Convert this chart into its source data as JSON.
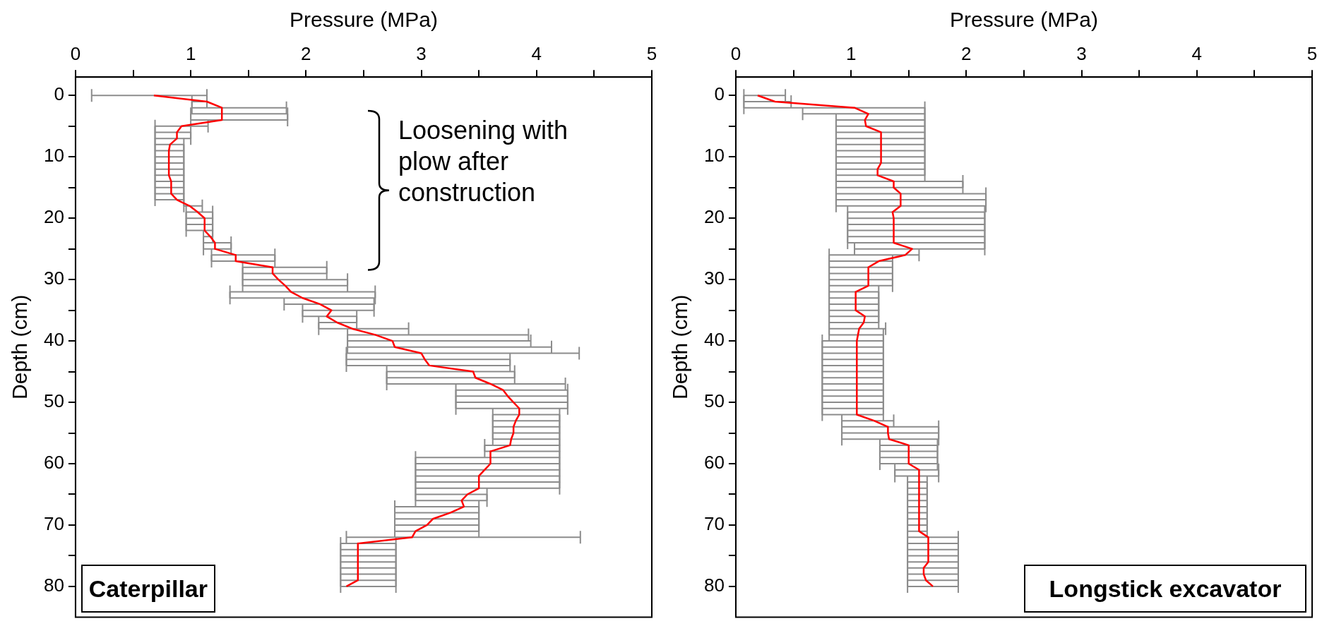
{
  "chart_data": [
    {
      "type": "line",
      "xlabel": "Pressure (MPa)",
      "ylabel": "Depth (cm)",
      "xlim": [
        0,
        5
      ],
      "xticks": [
        0,
        {
          "value": 0.5,
          "label": null
        },
        1,
        {
          "value": 1.5,
          "label": null
        },
        2,
        {
          "value": 2.5,
          "label": null
        },
        3,
        {
          "value": 3.5,
          "label": null
        },
        4,
        {
          "value": 4.5,
          "label": null
        },
        5
      ],
      "ylim": [
        85,
        -3
      ],
      "yticks": [
        0,
        {
          "value": 5,
          "label": null
        },
        10,
        {
          "value": 15,
          "label": null
        },
        20,
        {
          "value": 25,
          "label": null
        },
        30,
        {
          "value": 35,
          "label": null
        },
        40,
        {
          "value": 45,
          "label": null
        },
        50,
        {
          "value": 55,
          "label": null
        },
        60,
        {
          "value": 65,
          "label": null
        },
        70,
        {
          "value": 75,
          "label": null
        },
        80
      ],
      "grid": false,
      "legend": false,
      "marker": "none",
      "annotations": [
        "Loosening with plow after construction",
        "Caterpillar"
      ],
      "series": [
        {
          "color": "#ff0000",
          "x": [
            0.68,
            1.14,
            1.27,
            1.27,
            1.27,
            0.92,
            0.88,
            0.88,
            0.82,
            0.81,
            0.81,
            0.81,
            0.81,
            0.81,
            0.83,
            0.83,
            0.83,
            0.88,
            0.99,
            1.06,
            1.12,
            1.12,
            1.12,
            1.17,
            1.21,
            1.21,
            1.39,
            1.39,
            1.71,
            1.71,
            1.76,
            1.82,
            1.87,
            1.97,
            2.12,
            2.22,
            2.18,
            2.27,
            2.4,
            2.6,
            2.75,
            2.77,
            3.0,
            3.03,
            3.07,
            3.45,
            3.47,
            3.6,
            3.71,
            3.75,
            3.8,
            3.85,
            3.85,
            3.82,
            3.8,
            3.8,
            3.78,
            3.77,
            3.6,
            3.6,
            3.6,
            3.55,
            3.5,
            3.5,
            3.5,
            3.4,
            3.35,
            3.37,
            3.25,
            3.1,
            3.05,
            2.95,
            2.92,
            2.45,
            2.45,
            2.45,
            2.45,
            2.45,
            2.45,
            2.45,
            2.35
          ],
          "values": [
            0,
            1,
            2,
            3,
            4,
            5,
            6,
            7,
            8,
            9,
            10,
            11,
            12,
            13,
            14,
            15,
            16,
            17,
            18,
            19,
            20,
            21,
            22,
            23,
            24,
            25,
            26,
            27,
            28,
            29,
            30,
            31,
            32,
            33,
            34,
            35,
            36,
            37,
            38,
            39,
            40,
            41,
            42,
            43,
            44,
            45,
            46,
            47,
            48,
            49,
            50,
            51,
            52,
            53,
            54,
            55,
            56,
            57,
            58,
            59,
            60,
            61,
            62,
            63,
            64,
            65,
            66,
            67,
            68,
            69,
            70,
            71,
            72,
            73,
            74,
            75,
            76,
            77,
            78,
            79,
            80
          ],
          "xerrors": [
            [
              0.14,
              1.14
            ],
            [
              1.01,
              1.14
            ],
            [
              1.01,
              1.83
            ],
            [
              1.0,
              1.84
            ],
            [
              1.0,
              1.84
            ],
            [
              0.69,
              1.15
            ],
            [
              0.69,
              1.0
            ],
            [
              0.69,
              1.0
            ],
            [
              0.69,
              0.94
            ],
            [
              0.69,
              0.94
            ],
            [
              0.69,
              0.94
            ],
            [
              0.69,
              0.94
            ],
            [
              0.69,
              0.94
            ],
            [
              0.69,
              0.94
            ],
            [
              0.69,
              0.94
            ],
            [
              0.69,
              0.94
            ],
            [
              0.69,
              0.94
            ],
            [
              0.69,
              0.94
            ],
            [
              0.94,
              1.1
            ],
            [
              0.96,
              1.19
            ],
            [
              0.96,
              1.19
            ],
            [
              0.96,
              1.19
            ],
            [
              0.96,
              1.19
            ],
            [
              1.11,
              1.19
            ],
            [
              1.11,
              1.35
            ],
            [
              1.11,
              1.35
            ],
            [
              1.18,
              1.73
            ],
            [
              1.18,
              1.73
            ],
            [
              1.45,
              2.18
            ],
            [
              1.45,
              2.18
            ],
            [
              1.45,
              2.36
            ],
            [
              1.45,
              2.36
            ],
            [
              1.34,
              2.6
            ],
            [
              1.34,
              2.6
            ],
            [
              1.81,
              2.59
            ],
            [
              1.97,
              2.59
            ],
            [
              1.97,
              2.44
            ],
            [
              2.11,
              2.44
            ],
            [
              2.11,
              2.89
            ],
            [
              2.36,
              3.93
            ],
            [
              2.36,
              3.95
            ],
            [
              2.36,
              4.13
            ],
            [
              2.35,
              4.37
            ],
            [
              2.35,
              3.77
            ],
            [
              2.35,
              3.77
            ],
            [
              2.7,
              3.81
            ],
            [
              2.7,
              3.81
            ],
            [
              2.7,
              4.25
            ],
            [
              3.3,
              4.27
            ],
            [
              3.3,
              4.27
            ],
            [
              3.3,
              4.27
            ],
            [
              3.3,
              4.27
            ],
            [
              3.62,
              4.2
            ],
            [
              3.62,
              4.2
            ],
            [
              3.62,
              4.2
            ],
            [
              3.62,
              4.2
            ],
            [
              3.62,
              4.2
            ],
            [
              3.55,
              4.2
            ],
            [
              3.55,
              4.2
            ],
            [
              2.95,
              4.2
            ],
            [
              2.95,
              4.2
            ],
            [
              2.95,
              4.2
            ],
            [
              2.95,
              4.2
            ],
            [
              2.95,
              4.2
            ],
            [
              2.95,
              4.2
            ],
            [
              2.95,
              3.57
            ],
            [
              2.95,
              3.57
            ],
            [
              2.77,
              3.5
            ],
            [
              2.77,
              3.5
            ],
            [
              2.77,
              3.5
            ],
            [
              2.77,
              3.5
            ],
            [
              2.77,
              3.5
            ],
            [
              2.35,
              4.38
            ],
            [
              2.3,
              2.78
            ],
            [
              2.3,
              2.78
            ],
            [
              2.3,
              2.78
            ],
            [
              2.3,
              2.78
            ],
            [
              2.3,
              2.78
            ],
            [
              2.3,
              2.78
            ],
            [
              2.3,
              2.78
            ],
            [
              2.3,
              2.78
            ]
          ]
        }
      ]
    },
    {
      "type": "line",
      "xlabel": "Pressure (MPa)",
      "ylabel": "Depth (cm)",
      "xlim": [
        0,
        5
      ],
      "xticks": [
        0,
        {
          "value": 0.5,
          "label": null
        },
        1,
        {
          "value": 1.5,
          "label": null
        },
        2,
        {
          "value": 2.5,
          "label": null
        },
        3,
        {
          "value": 3.5,
          "label": null
        },
        4,
        {
          "value": 4.5,
          "label": null
        },
        5
      ],
      "ylim": [
        85,
        -3
      ],
      "yticks": [
        0,
        {
          "value": 5,
          "label": null
        },
        10,
        {
          "value": 15,
          "label": null
        },
        20,
        {
          "value": 25,
          "label": null
        },
        30,
        {
          "value": 35,
          "label": null
        },
        40,
        {
          "value": 45,
          "label": null
        },
        50,
        {
          "value": 55,
          "label": null
        },
        60,
        {
          "value": 65,
          "label": null
        },
        70,
        {
          "value": 75,
          "label": null
        },
        80
      ],
      "grid": false,
      "legend": false,
      "marker": "none",
      "annotations": [
        "Longstick excavator"
      ],
      "series": [
        {
          "color": "#ff0000",
          "x": [
            0.19,
            0.34,
            1.03,
            1.15,
            1.12,
            1.13,
            1.26,
            1.26,
            1.26,
            1.26,
            1.26,
            1.26,
            1.23,
            1.23,
            1.37,
            1.37,
            1.43,
            1.43,
            1.43,
            1.36,
            1.37,
            1.37,
            1.37,
            1.37,
            1.37,
            1.53,
            1.47,
            1.24,
            1.15,
            1.15,
            1.15,
            1.15,
            1.04,
            1.04,
            1.04,
            1.04,
            1.12,
            1.11,
            1.07,
            1.06,
            1.05,
            1.05,
            1.05,
            1.05,
            1.05,
            1.05,
            1.05,
            1.05,
            1.05,
            1.05,
            1.05,
            1.05,
            1.05,
            1.2,
            1.32,
            1.32,
            1.33,
            1.5,
            1.5,
            1.5,
            1.5,
            1.59,
            1.59,
            1.59,
            1.59,
            1.59,
            1.59,
            1.59,
            1.59,
            1.59,
            1.59,
            1.59,
            1.67,
            1.67,
            1.67,
            1.67,
            1.67,
            1.63,
            1.63,
            1.65,
            1.71
          ],
          "values": [
            0,
            1,
            2,
            3,
            4,
            5,
            6,
            7,
            8,
            9,
            10,
            11,
            12,
            13,
            14,
            15,
            16,
            17,
            18,
            19,
            20,
            21,
            22,
            23,
            24,
            25,
            26,
            27,
            28,
            29,
            30,
            31,
            32,
            33,
            34,
            35,
            36,
            37,
            38,
            39,
            40,
            41,
            42,
            43,
            44,
            45,
            46,
            47,
            48,
            49,
            50,
            51,
            52,
            53,
            54,
            55,
            56,
            57,
            58,
            59,
            60,
            61,
            62,
            63,
            64,
            65,
            66,
            67,
            68,
            69,
            70,
            71,
            72,
            73,
            74,
            75,
            76,
            77,
            78,
            79,
            80
          ],
          "xerrors": [
            [
              0.07,
              0.43
            ],
            [
              0.07,
              0.48
            ],
            [
              0.07,
              1.64
            ],
            [
              0.58,
              1.64
            ],
            [
              0.87,
              1.64
            ],
            [
              0.87,
              1.64
            ],
            [
              0.87,
              1.64
            ],
            [
              0.87,
              1.64
            ],
            [
              0.87,
              1.64
            ],
            [
              0.87,
              1.64
            ],
            [
              0.87,
              1.64
            ],
            [
              0.87,
              1.64
            ],
            [
              0.87,
              1.64
            ],
            [
              0.87,
              1.64
            ],
            [
              0.87,
              1.97
            ],
            [
              0.87,
              1.97
            ],
            [
              0.87,
              2.17
            ],
            [
              0.87,
              2.17
            ],
            [
              0.87,
              2.17
            ],
            [
              0.97,
              2.16
            ],
            [
              0.97,
              2.16
            ],
            [
              0.97,
              2.16
            ],
            [
              0.97,
              2.16
            ],
            [
              0.97,
              2.16
            ],
            [
              0.97,
              2.16
            ],
            [
              1.03,
              2.16
            ],
            [
              0.81,
              1.59
            ],
            [
              0.81,
              1.36
            ],
            [
              0.81,
              1.36
            ],
            [
              0.81,
              1.36
            ],
            [
              0.81,
              1.36
            ],
            [
              0.81,
              1.36
            ],
            [
              0.81,
              1.24
            ],
            [
              0.81,
              1.24
            ],
            [
              0.81,
              1.24
            ],
            [
              0.81,
              1.24
            ],
            [
              0.81,
              1.24
            ],
            [
              0.81,
              1.24
            ],
            [
              0.81,
              1.3
            ],
            [
              0.81,
              1.28
            ],
            [
              0.75,
              1.28
            ],
            [
              0.75,
              1.28
            ],
            [
              0.75,
              1.28
            ],
            [
              0.75,
              1.28
            ],
            [
              0.75,
              1.28
            ],
            [
              0.75,
              1.28
            ],
            [
              0.75,
              1.28
            ],
            [
              0.75,
              1.28
            ],
            [
              0.75,
              1.28
            ],
            [
              0.75,
              1.28
            ],
            [
              0.75,
              1.28
            ],
            [
              0.75,
              1.28
            ],
            [
              0.75,
              1.28
            ],
            [
              0.92,
              1.37
            ],
            [
              0.92,
              1.76
            ],
            [
              0.92,
              1.76
            ],
            [
              0.92,
              1.76
            ],
            [
              1.25,
              1.75
            ],
            [
              1.25,
              1.75
            ],
            [
              1.25,
              1.75
            ],
            [
              1.25,
              1.75
            ],
            [
              1.38,
              1.76
            ],
            [
              1.38,
              1.76
            ],
            [
              1.49,
              1.66
            ],
            [
              1.49,
              1.66
            ],
            [
              1.49,
              1.66
            ],
            [
              1.49,
              1.66
            ],
            [
              1.49,
              1.66
            ],
            [
              1.49,
              1.66
            ],
            [
              1.49,
              1.66
            ],
            [
              1.49,
              1.66
            ],
            [
              1.49,
              1.66
            ],
            [
              1.49,
              1.93
            ],
            [
              1.49,
              1.93
            ],
            [
              1.49,
              1.93
            ],
            [
              1.49,
              1.93
            ],
            [
              1.49,
              1.93
            ],
            [
              1.49,
              1.93
            ],
            [
              1.49,
              1.93
            ],
            [
              1.49,
              1.93
            ],
            [
              1.49,
              1.93
            ]
          ]
        }
      ]
    }
  ]
}
